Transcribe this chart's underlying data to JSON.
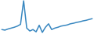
{
  "values": [
    30,
    28,
    32,
    35,
    38,
    42,
    48,
    130,
    35,
    25,
    30,
    22,
    45,
    20,
    38,
    50,
    30,
    35,
    38,
    42,
    44,
    46,
    50,
    52,
    55,
    57,
    60,
    62,
    65,
    68
  ],
  "line_color": "#3887c0",
  "linewidth": 1.1,
  "background_color": "#ffffff"
}
